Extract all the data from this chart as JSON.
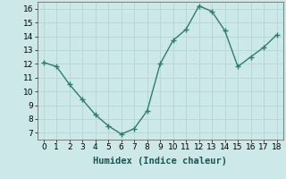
{
  "x": [
    0,
    1,
    2,
    3,
    4,
    5,
    6,
    7,
    8,
    9,
    10,
    11,
    12,
    13,
    14,
    15,
    16,
    17,
    18
  ],
  "y": [
    12.1,
    11.8,
    10.5,
    9.4,
    8.3,
    7.5,
    6.9,
    7.3,
    8.6,
    12.0,
    13.7,
    14.5,
    16.2,
    15.8,
    14.4,
    11.8,
    12.5,
    13.2,
    14.1
  ],
  "line_color": "#2e7d6e",
  "marker": "+",
  "bg_color": "#cce8e8",
  "grid_color": "#b8d8d8",
  "xlabel": "Humidex (Indice chaleur)",
  "xlim": [
    -0.5,
    18.5
  ],
  "ylim": [
    6.5,
    16.5
  ],
  "yticks": [
    7,
    8,
    9,
    10,
    11,
    12,
    13,
    14,
    15,
    16
  ],
  "xticks": [
    0,
    1,
    2,
    3,
    4,
    5,
    6,
    7,
    8,
    9,
    10,
    11,
    12,
    13,
    14,
    15,
    16,
    17,
    18
  ],
  "xlabel_fontsize": 7.5,
  "tick_fontsize": 6.5,
  "line_width": 1.0,
  "marker_size": 4
}
